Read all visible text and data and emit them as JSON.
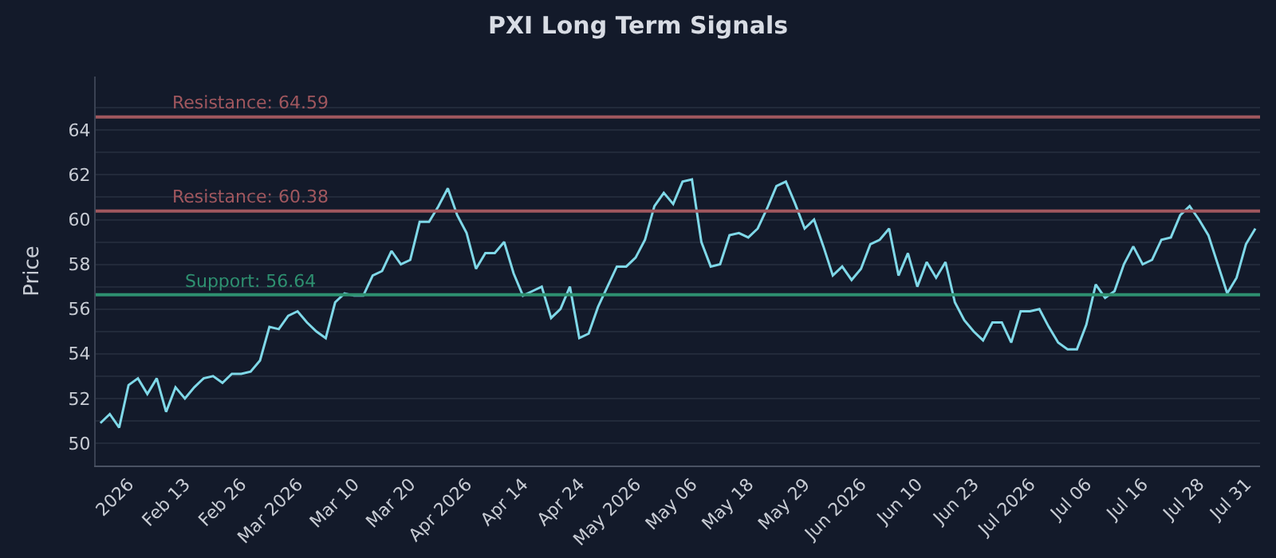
{
  "chart_data": {
    "type": "line",
    "title": "PXI Long Term Signals",
    "ylabel": "Price",
    "categories": [
      null,
      null,
      null,
      "2026",
      null,
      null,
      null,
      null,
      null,
      "Feb 13",
      null,
      null,
      null,
      null,
      null,
      "Feb 26",
      null,
      null,
      null,
      null,
      null,
      "Mar 2026",
      null,
      null,
      null,
      null,
      null,
      "Mar 10",
      null,
      null,
      null,
      null,
      null,
      "Mar 20",
      null,
      null,
      null,
      null,
      null,
      "Apr 2026",
      null,
      null,
      null,
      null,
      null,
      "Apr 14",
      null,
      null,
      null,
      null,
      null,
      "Apr 24",
      null,
      null,
      null,
      null,
      null,
      "May 2026",
      null,
      null,
      null,
      null,
      null,
      "May 06",
      null,
      null,
      null,
      null,
      null,
      "May 18",
      null,
      null,
      null,
      null,
      null,
      "May 29",
      null,
      null,
      null,
      null,
      null,
      "Jun 2026",
      null,
      null,
      null,
      null,
      null,
      "Jun 10",
      null,
      null,
      null,
      null,
      null,
      "Jun 23",
      null,
      null,
      null,
      null,
      null,
      "Jul 2026",
      null,
      null,
      null,
      null,
      null,
      "Jul 06",
      null,
      null,
      null,
      null,
      null,
      "Jul 16",
      null,
      null,
      null,
      null,
      null,
      "Jul 28",
      null,
      null,
      null,
      null,
      "Jul 31",
      null
    ],
    "series": [
      {
        "color": "#7fd8e8",
        "values": [
          50.9,
          51.3,
          50.7,
          52.6,
          52.9,
          52.2,
          52.9,
          51.4,
          52.5,
          52.0,
          52.5,
          52.9,
          53.0,
          52.7,
          53.1,
          53.1,
          53.2,
          53.7,
          55.2,
          55.1,
          55.7,
          55.9,
          55.4,
          55.0,
          54.7,
          56.3,
          56.7,
          56.6,
          56.6,
          57.5,
          57.7,
          58.6,
          58.0,
          58.2,
          59.9,
          59.9,
          60.6,
          61.4,
          60.2,
          59.4,
          57.8,
          58.5,
          58.5,
          59.0,
          57.6,
          56.6,
          56.8,
          57.0,
          55.6,
          56.0,
          57.0,
          54.7,
          54.9,
          56.1,
          57.0,
          57.9,
          57.9,
          58.3,
          59.1,
          60.6,
          61.2,
          60.7,
          61.7,
          61.8,
          59.0,
          57.9,
          58.0,
          59.3,
          59.4,
          59.2,
          59.6,
          60.5,
          61.5,
          61.7,
          60.7,
          59.6,
          60.0,
          58.8,
          57.5,
          57.9,
          57.3,
          57.8,
          58.9,
          59.1,
          59.6,
          57.5,
          58.5,
          57.0,
          58.1,
          57.4,
          58.1,
          56.3,
          55.5,
          55.0,
          54.6,
          55.4,
          55.4,
          54.5,
          55.9,
          55.9,
          56.0,
          55.2,
          54.5,
          54.2,
          54.2,
          55.3,
          57.1,
          56.5,
          56.8,
          58.0,
          58.8,
          58.0,
          58.2,
          59.1,
          59.2,
          60.2,
          60.6,
          60.0,
          59.3,
          58.0,
          56.7,
          57.4,
          58.9,
          59.6
        ]
      }
    ],
    "ylim": [
      49,
      66.4
    ],
    "yticks": [
      {
        "value": 49,
        "label": null
      },
      50,
      {
        "value": 51,
        "label": null
      },
      52,
      {
        "value": 53,
        "label": null
      },
      54,
      {
        "value": 55,
        "label": null
      },
      56,
      {
        "value": 57,
        "label": null
      },
      58,
      {
        "value": 59,
        "label": null
      },
      60,
      {
        "value": 61,
        "label": null
      },
      62,
      {
        "value": 63,
        "label": null
      },
      64,
      {
        "value": 65,
        "label": null
      }
    ],
    "grid": "y",
    "marker": "none",
    "line_style": "solid",
    "ref_lines": [
      {
        "axis": "y",
        "value": 64.59,
        "label": "Resistance: 64.59",
        "color": "#a0575e"
      },
      {
        "axis": "y",
        "value": 60.38,
        "label": "Resistance: 60.38",
        "color": "#a0575e"
      },
      {
        "axis": "y",
        "value": 56.64,
        "label": "Support: 56.64",
        "color": "#2e9070"
      }
    ]
  }
}
